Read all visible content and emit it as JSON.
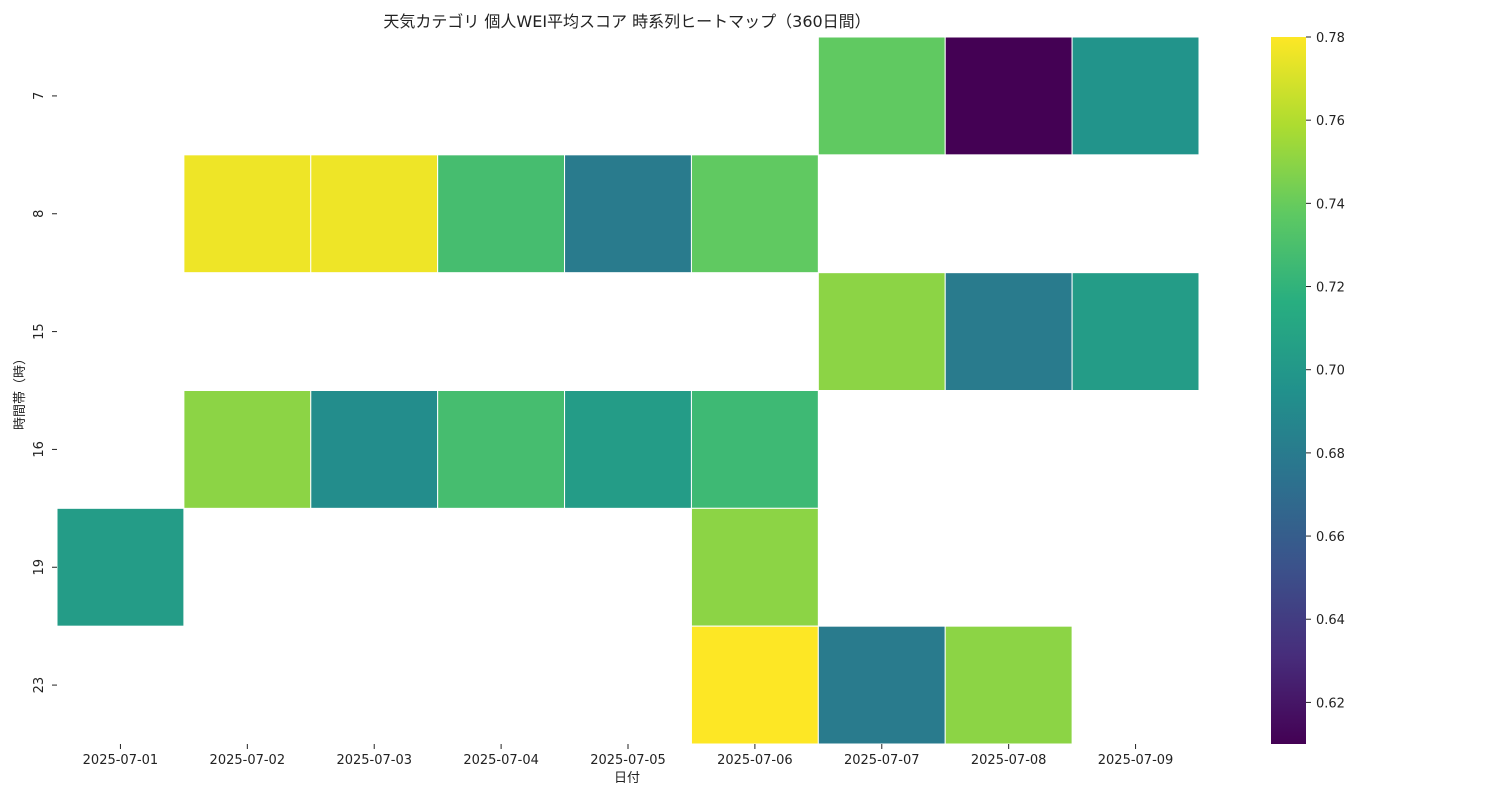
{
  "chart_data": {
    "type": "heatmap",
    "title": "天気カテゴリ 個人WEI平均スコア 時系列ヒートマップ（360日間）",
    "xlabel": "日付",
    "ylabel": "時間帯（時）",
    "x_categories": [
      "2025-07-01",
      "2025-07-02",
      "2025-07-03",
      "2025-07-04",
      "2025-07-05",
      "2025-07-06",
      "2025-07-07",
      "2025-07-08",
      "2025-07-09"
    ],
    "y_categories": [
      "7",
      "8",
      "15",
      "16",
      "19",
      "23"
    ],
    "values": [
      [
        null,
        null,
        null,
        null,
        null,
        null,
        0.738,
        0.61,
        0.697
      ],
      [
        null,
        0.776,
        0.776,
        0.728,
        0.68,
        0.738,
        null,
        null,
        null
      ],
      [
        null,
        null,
        null,
        null,
        null,
        null,
        0.75,
        0.68,
        0.703
      ],
      [
        null,
        0.75,
        0.692,
        0.728,
        0.703,
        0.725,
        null,
        null,
        null
      ],
      [
        0.703,
        null,
        null,
        null,
        null,
        0.75,
        null,
        null,
        null
      ],
      [
        null,
        null,
        null,
        null,
        null,
        0.78,
        0.68,
        0.75,
        null
      ]
    ],
    "colormap": "viridis",
    "colorbar": {
      "min": 0.61,
      "max": 0.78,
      "ticks": [
        0.62,
        0.64,
        0.66,
        0.68,
        0.7,
        0.72,
        0.74,
        0.76,
        0.78
      ],
      "tick_labels": [
        "0.62",
        "0.64",
        "0.66",
        "0.68",
        "0.70",
        "0.72",
        "0.74",
        "0.76",
        "0.78"
      ]
    },
    "grid": false,
    "legend": "colorbar-right"
  }
}
